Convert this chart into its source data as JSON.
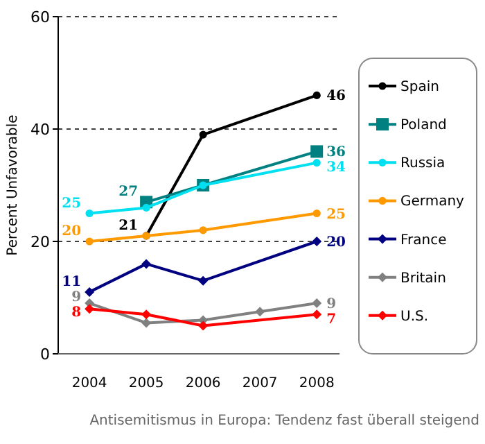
{
  "chart_data": {
    "type": "line",
    "ylabel": "Percent Unfavorable",
    "xlim": [
      2003.45,
      2008.4
    ],
    "xticks": [
      2004,
      2005,
      2006,
      2007,
      2008
    ],
    "ylim": [
      0,
      60
    ],
    "yticks": [
      0,
      20,
      40,
      60
    ],
    "grid": "y",
    "legend": "right",
    "line_style": "solid",
    "annotations": [
      "Antisemitismus in Europa: Tendenz fast überall steigend"
    ],
    "series": [
      {
        "name": "Spain",
        "color": "#000000",
        "marker": "circle",
        "x": [
          2005,
          2006,
          2008
        ],
        "values": [
          21,
          39,
          46
        ],
        "value_labels": [
          "21",
          null,
          "46"
        ]
      },
      {
        "name": "Poland",
        "color": "#008080",
        "marker": "square",
        "x": [
          2005,
          2006,
          2008
        ],
        "values": [
          27,
          30,
          36
        ],
        "value_labels": [
          "27",
          null,
          "36"
        ]
      },
      {
        "name": "Russia",
        "color": "#00e0f0",
        "marker": "circle",
        "x": [
          2004,
          2005,
          2006,
          2008
        ],
        "values": [
          25,
          26,
          30,
          34
        ],
        "value_labels": [
          "25",
          null,
          null,
          "34"
        ]
      },
      {
        "name": "Germany",
        "color": "#ff9900",
        "marker": "circle",
        "x": [
          2004,
          2005,
          2006,
          2008
        ],
        "values": [
          20,
          21,
          22,
          25
        ],
        "value_labels": [
          "20",
          null,
          null,
          "25"
        ]
      },
      {
        "name": "France",
        "color": "#000080",
        "marker": "diamond",
        "x": [
          2004,
          2005,
          2006,
          2008
        ],
        "values": [
          11,
          16,
          13,
          20
        ],
        "value_labels": [
          "11",
          null,
          null,
          "20"
        ]
      },
      {
        "name": "Britain",
        "color": "#808080",
        "marker": "diamond",
        "x": [
          2004,
          2005,
          2006,
          2007,
          2008
        ],
        "values": [
          9,
          5.5,
          6,
          7.5,
          9
        ],
        "value_labels": [
          "9",
          null,
          null,
          null,
          "9"
        ]
      },
      {
        "name": "U.S.",
        "color": "#ff0000",
        "marker": "diamond",
        "x": [
          2004,
          2005,
          2006,
          2008
        ],
        "values": [
          8,
          7,
          5,
          7
        ],
        "value_labels": [
          "8",
          null,
          null,
          "7"
        ]
      }
    ]
  }
}
